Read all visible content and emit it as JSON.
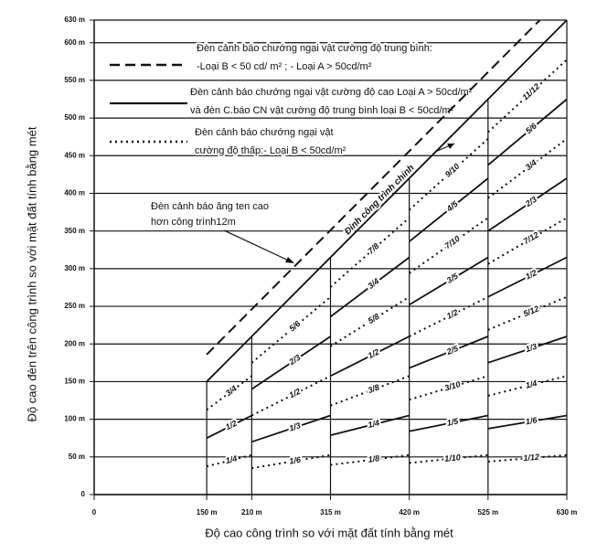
{
  "chart_data": {
    "type": "line",
    "x_label": "Độ cao công trình so với mặt đất tính bằng mét",
    "y_label": "Độ cao đèn trên công trình so với mặt đất tính bằng mét",
    "color": "#111111",
    "xlim": [
      0,
      630
    ],
    "ylim": [
      0,
      630
    ],
    "xticks": [
      0,
      {
        "value": 150,
        "label": "150 m"
      },
      {
        "value": 210,
        "label": "210 m"
      },
      {
        "value": 315,
        "label": "315 m"
      },
      {
        "value": 420,
        "label": "420 m"
      },
      {
        "value": 525,
        "label": "525 m"
      },
      {
        "value": 630,
        "label": "630 m"
      }
    ],
    "yticks": [
      0,
      {
        "value": 50,
        "label": "50 m"
      },
      {
        "value": 100,
        "label": "100 m"
      },
      {
        "value": 150,
        "label": "150 m"
      },
      {
        "value": 200,
        "label": "200 m"
      },
      {
        "value": 250,
        "label": "250 m"
      },
      {
        "value": 300,
        "label": "300 m"
      },
      {
        "value": 350,
        "label": "350 m"
      },
      {
        "value": 400,
        "label": "400 m"
      },
      {
        "value": 450,
        "label": "450 m"
      },
      {
        "value": 500,
        "label": "500 m"
      },
      {
        "value": 550,
        "label": "550 m"
      },
      {
        "value": 600,
        "label": "600 m"
      },
      {
        "value": 630,
        "label": "630 m"
      }
    ],
    "grid": true,
    "legend": [
      {
        "style": "dashed",
        "lines": [
          "Đèn cảnh báo chướng ngại vật cường độ trung bình:",
          "-Loại B  < 50 cd/ m²  ;    - Loại A  > 50cd/m²"
        ]
      },
      {
        "style": "solid",
        "lines": [
          "Đèn cảnh báo chướng ngại vật cường độ  cao Loại A > 50cd/m²",
          "và đèn C.báo CN vật cường độ  trung bình loại B < 50cd/m²"
        ]
      },
      {
        "style": "dotted",
        "lines": [
          "Đèn cảnh báo chướng ngại vật",
          "cường độ  thấp:- Loại B < 50cd/m²"
        ]
      }
    ],
    "annotations": [
      {
        "lines": [
          "Đèn cảnh báo ăng ten cao",
          "hơn công trình12m"
        ]
      }
    ],
    "series": [
      {
        "name": "Đỉnh công trình chính",
        "style": "solid",
        "x": [
          150,
          630
        ],
        "values": [
          150,
          630
        ]
      },
      {
        "style": "dashed",
        "x": [
          150,
          594
        ],
        "values": [
          186,
          630
        ]
      },
      {
        "name": "1/4",
        "style": "dotted",
        "x": [
          150,
          210
        ],
        "values": [
          37.5,
          52.5
        ]
      },
      {
        "name": "1/2",
        "style": "solid",
        "x": [
          150,
          210
        ],
        "values": [
          75,
          105
        ]
      },
      {
        "name": "3/4",
        "style": "dotted",
        "x": [
          150,
          210
        ],
        "values": [
          112.5,
          157.5
        ]
      },
      {
        "name": "1/6",
        "style": "dotted",
        "x": [
          210,
          315
        ],
        "values": [
          35,
          52.5
        ]
      },
      {
        "name": "1/3",
        "style": "solid",
        "x": [
          210,
          315
        ],
        "values": [
          70,
          105
        ]
      },
      {
        "name": "1/2",
        "style": "dotted",
        "x": [
          210,
          315
        ],
        "values": [
          105,
          157.5
        ]
      },
      {
        "name": "2/3",
        "style": "solid",
        "x": [
          210,
          315
        ],
        "values": [
          140,
          210
        ]
      },
      {
        "name": "5/6",
        "style": "dotted",
        "x": [
          210,
          315
        ],
        "values": [
          175,
          262.5
        ]
      },
      {
        "name": "1/8",
        "style": "dotted",
        "x": [
          315,
          420
        ],
        "values": [
          39.375,
          52.5
        ]
      },
      {
        "name": "1/4",
        "style": "solid",
        "x": [
          315,
          420
        ],
        "values": [
          78.75,
          105
        ]
      },
      {
        "name": "3/8",
        "style": "dotted",
        "x": [
          315,
          420
        ],
        "values": [
          118.125,
          157.5
        ]
      },
      {
        "name": "1/2",
        "style": "solid",
        "x": [
          315,
          420
        ],
        "values": [
          157.5,
          210
        ]
      },
      {
        "name": "5/8",
        "style": "dotted",
        "x": [
          315,
          420
        ],
        "values": [
          196.875,
          262.5
        ]
      },
      {
        "name": "3/4",
        "style": "solid",
        "x": [
          315,
          420
        ],
        "values": [
          236.25,
          315
        ]
      },
      {
        "name": "7/8",
        "style": "dotted",
        "x": [
          315,
          420
        ],
        "values": [
          275.625,
          367.5
        ]
      },
      {
        "name": "1/10",
        "style": "dotted",
        "x": [
          420,
          525
        ],
        "values": [
          42,
          52.5
        ]
      },
      {
        "name": "1/5",
        "style": "solid",
        "x": [
          420,
          525
        ],
        "values": [
          84,
          105
        ]
      },
      {
        "name": "3/10",
        "style": "dotted",
        "x": [
          420,
          525
        ],
        "values": [
          126,
          157.5
        ]
      },
      {
        "name": "2/5",
        "style": "solid",
        "x": [
          420,
          525
        ],
        "values": [
          168,
          210
        ]
      },
      {
        "name": "1/2",
        "style": "dotted",
        "x": [
          420,
          525
        ],
        "values": [
          210,
          262.5
        ]
      },
      {
        "name": "3/5",
        "style": "solid",
        "x": [
          420,
          525
        ],
        "values": [
          252,
          315
        ]
      },
      {
        "name": "7/10",
        "style": "dotted",
        "x": [
          420,
          525
        ],
        "values": [
          294,
          367.5
        ]
      },
      {
        "name": "4/5",
        "style": "solid",
        "x": [
          420,
          525
        ],
        "values": [
          336,
          420
        ]
      },
      {
        "name": "9/10",
        "style": "dotted",
        "x": [
          420,
          525
        ],
        "values": [
          378,
          472.5
        ]
      },
      {
        "name": "1/12",
        "style": "dotted",
        "x": [
          525,
          630
        ],
        "values": [
          43.75,
          52.5
        ]
      },
      {
        "name": "1/6",
        "style": "solid",
        "x": [
          525,
          630
        ],
        "values": [
          87.5,
          105
        ]
      },
      {
        "name": "1/4",
        "style": "dotted",
        "x": [
          525,
          630
        ],
        "values": [
          131.25,
          157.5
        ]
      },
      {
        "name": "1/3",
        "style": "solid",
        "x": [
          525,
          630
        ],
        "values": [
          175,
          210
        ]
      },
      {
        "name": "5/12",
        "style": "dotted",
        "x": [
          525,
          630
        ],
        "values": [
          218.75,
          262.5
        ]
      },
      {
        "name": "1/2",
        "style": "solid",
        "x": [
          525,
          630
        ],
        "values": [
          262.5,
          315
        ]
      },
      {
        "name": "7/12",
        "style": "dotted",
        "x": [
          525,
          630
        ],
        "values": [
          306.25,
          367.5
        ]
      },
      {
        "name": "2/3",
        "style": "solid",
        "x": [
          525,
          630
        ],
        "values": [
          350,
          420
        ]
      },
      {
        "name": "3/4",
        "style": "dotted",
        "x": [
          525,
          630
        ],
        "values": [
          393.75,
          472.5
        ]
      },
      {
        "name": "5/6",
        "style": "solid",
        "x": [
          525,
          630
        ],
        "values": [
          437.5,
          525
        ]
      },
      {
        "name": "11/12",
        "style": "dotted",
        "x": [
          525,
          630
        ],
        "values": [
          481.25,
          577.5
        ]
      }
    ]
  }
}
